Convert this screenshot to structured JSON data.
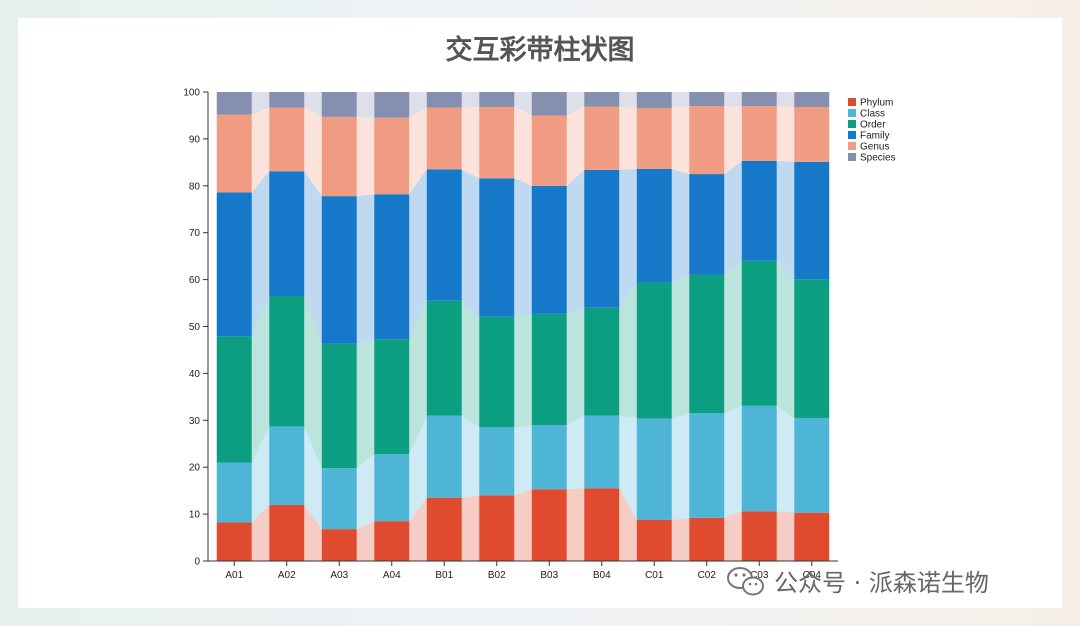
{
  "chart_data": {
    "type": "stacked-bar",
    "title": "交互彩带柱状图",
    "categories": [
      "A01",
      "A02",
      "A03",
      "A04",
      "B01",
      "B02",
      "B03",
      "B04",
      "C01",
      "C02",
      "C03",
      "C04"
    ],
    "ylim": [
      0,
      100
    ],
    "yticks": [
      0,
      10,
      20,
      30,
      40,
      50,
      60,
      70,
      80,
      90,
      100
    ],
    "legend_position": "top-right",
    "series": [
      {
        "name": "Phylum",
        "color": "#e04a2f",
        "values": [
          8.2,
          12.0,
          6.8,
          8.5,
          13.5,
          14.0,
          15.3,
          15.5,
          8.8,
          9.2,
          10.6,
          10.3
        ]
      },
      {
        "name": "Class",
        "color": "#4eb5d6",
        "values": [
          12.8,
          16.7,
          13.0,
          14.3,
          17.5,
          14.5,
          13.7,
          15.5,
          21.6,
          22.3,
          22.5,
          20.2
        ]
      },
      {
        "name": "Order",
        "color": "#0c9e80",
        "values": [
          26.9,
          27.8,
          26.5,
          24.5,
          24.5,
          23.6,
          23.7,
          23.0,
          29.0,
          29.5,
          30.9,
          29.6
        ]
      },
      {
        "name": "Family",
        "color": "#1578c9",
        "values": [
          30.7,
          26.6,
          31.5,
          30.9,
          28.0,
          29.5,
          27.3,
          29.4,
          24.2,
          21.5,
          21.3,
          25.0
        ]
      },
      {
        "name": "Genus",
        "color": "#f09c82",
        "values": [
          16.6,
          13.6,
          16.9,
          16.3,
          13.2,
          15.2,
          15.0,
          13.5,
          13.0,
          14.5,
          11.7,
          11.7
        ]
      },
      {
        "name": "Species",
        "color": "#8590b0",
        "values": [
          4.8,
          3.3,
          5.3,
          5.5,
          3.3,
          3.2,
          5.0,
          3.1,
          3.4,
          3.0,
          3.0,
          3.2
        ]
      }
    ]
  },
  "watermark": {
    "icon": "wechat-icon",
    "text": "公众号 · 派森诺生物"
  }
}
